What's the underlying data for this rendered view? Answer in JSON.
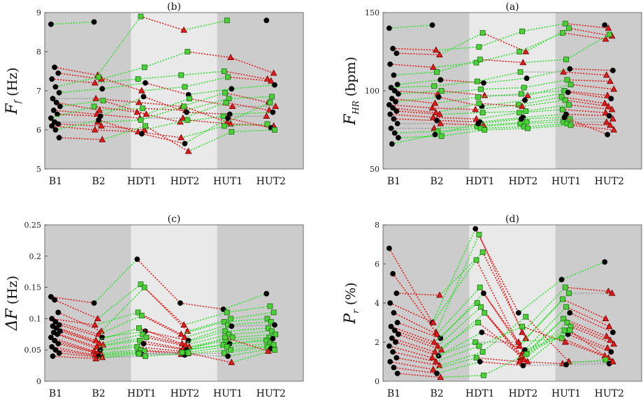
{
  "chart_data": [
    {
      "id": "b",
      "type": "scatter",
      "title": "(b)",
      "ylabel_main": "F",
      "ylabel_sub": "f",
      "ylabel_unit": "(Hz)",
      "categories": [
        "B1",
        "B2",
        "HDT1",
        "HDT2",
        "HUT1",
        "HUT2"
      ],
      "ylim": [
        5,
        9
      ],
      "yticks": [
        5,
        6,
        7,
        8,
        9
      ],
      "grid": false,
      "background_bands": [
        "dark",
        "dark",
        "light",
        "light",
        "dark",
        "dark"
      ],
      "subjects": [
        [
          8.7,
          8.76,
          null,
          null,
          null,
          8.8
        ],
        [
          7.6,
          7.4,
          8.9,
          8.55,
          8.8,
          null
        ],
        [
          7.45,
          7.3,
          7.6,
          8.0,
          7.85,
          7.45
        ],
        [
          7.3,
          7.2,
          7.3,
          7.4,
          7.5,
          7.3
        ],
        [
          7.1,
          7.35,
          7.0,
          7.1,
          7.35,
          7.25
        ],
        [
          6.95,
          7.05,
          7.2,
          6.9,
          7.05,
          7.15
        ],
        [
          6.8,
          6.8,
          6.7,
          6.6,
          6.95,
          6.7
        ],
        [
          6.7,
          6.5,
          6.55,
          6.5,
          6.8,
          6.85
        ],
        [
          6.6,
          6.75,
          6.4,
          6.8,
          6.6,
          6.6
        ],
        [
          6.5,
          6.4,
          6.3,
          6.3,
          6.7,
          6.5
        ],
        [
          6.4,
          6.35,
          6.85,
          6.45,
          6.4,
          6.45
        ],
        [
          6.3,
          6.6,
          6.45,
          6.2,
          6.35,
          6.35
        ],
        [
          6.2,
          6.2,
          6.25,
          6.6,
          6.2,
          6.7
        ],
        [
          6.15,
          6.1,
          6.0,
          6.25,
          6.15,
          6.1
        ],
        [
          6.1,
          6.0,
          5.95,
          5.8,
          6.1,
          6.15
        ],
        [
          6.0,
          6.25,
          5.9,
          5.65,
          6.3,
          6.05
        ],
        [
          5.8,
          5.75,
          6.1,
          5.45,
          5.95,
          6.0
        ]
      ]
    },
    {
      "id": "a",
      "type": "scatter",
      "title": "(a)",
      "ylabel_main": "F",
      "ylabel_sub": "HR",
      "ylabel_unit": "(bpm)",
      "categories": [
        "B1",
        "B2",
        "HDT1",
        "HDT2",
        "HUT1",
        "HUT2"
      ],
      "ylim": [
        50,
        150
      ],
      "yticks": [
        50,
        100,
        150
      ],
      "grid": false,
      "background_bands": [
        "dark",
        "dark",
        "light",
        "light",
        "dark",
        "dark"
      ],
      "subjects": [
        [
          140,
          142,
          null,
          null,
          null,
          142
        ],
        [
          127,
          126,
          128,
          138,
          143,
          140
        ],
        [
          124,
          123,
          137,
          125,
          140,
          135
        ],
        [
          117,
          115,
          118,
          125,
          137,
          133
        ],
        [
          110,
          112,
          120,
          118,
          120,
          136
        ],
        [
          104,
          107,
          105,
          108,
          114,
          113
        ],
        [
          102,
          103,
          106,
          112,
          112,
          110
        ],
        [
          100,
          98,
          101,
          102,
          107,
          106
        ],
        [
          98,
          100,
          97,
          97,
          104,
          101
        ],
        [
          95,
          92,
          96,
          98,
          100,
          97
        ],
        [
          93,
          96,
          90,
          94,
          99,
          95
        ],
        [
          91,
          89,
          88,
          91,
          96,
          92
        ],
        [
          89,
          86,
          92,
          90,
          94,
          90
        ],
        [
          87,
          85,
          86,
          87,
          91,
          88
        ],
        [
          85,
          83,
          82,
          86,
          88,
          86
        ],
        [
          82,
          81,
          80,
          83,
          85,
          84
        ],
        [
          79,
          79,
          78,
          80,
          82,
          82
        ],
        [
          76,
          76,
          77,
          79,
          80,
          80
        ],
        [
          73,
          74,
          76,
          77,
          79,
          78
        ],
        [
          70,
          71,
          75,
          76,
          78,
          75
        ],
        [
          66,
          72,
          79,
          82,
          83,
          72
        ]
      ]
    },
    {
      "id": "c",
      "type": "scatter",
      "title": "(c)",
      "ylabel_main": "ΔF",
      "ylabel_sub": "",
      "ylabel_unit": "(Hz)",
      "categories": [
        "B1",
        "B2",
        "HDT1",
        "HDT2",
        "HUT1",
        "HUT2"
      ],
      "ylim": [
        0,
        0.25
      ],
      "yticks": [
        0,
        0.05,
        0.1,
        0.15,
        0.2,
        0.25
      ],
      "grid": false,
      "background_bands": [
        "dark",
        "dark",
        "light",
        "light",
        "dark",
        "dark"
      ],
      "subjects": [
        [
          0.135,
          0.125,
          0.195,
          0.125,
          0.115,
          0.14
        ],
        [
          0.13,
          0.1,
          0.155,
          0.09,
          0.11,
          0.12
        ],
        [
          0.11,
          0.08,
          0.15,
          0.08,
          0.1,
          0.11
        ],
        [
          0.1,
          0.09,
          0.11,
          0.075,
          0.095,
          0.1
        ],
        [
          0.095,
          0.075,
          0.105,
          0.07,
          0.09,
          0.095
        ],
        [
          0.09,
          0.07,
          0.08,
          0.065,
          0.088,
          0.09
        ],
        [
          0.088,
          0.065,
          0.085,
          0.06,
          0.08,
          0.085
        ],
        [
          0.085,
          0.06,
          0.075,
          0.058,
          0.075,
          0.08
        ],
        [
          0.08,
          0.058,
          0.07,
          0.055,
          0.07,
          0.075
        ],
        [
          0.078,
          0.055,
          0.065,
          0.052,
          0.065,
          0.07
        ],
        [
          0.075,
          0.05,
          0.06,
          0.05,
          0.06,
          0.068
        ],
        [
          0.07,
          0.048,
          0.055,
          0.048,
          0.058,
          0.065
        ],
        [
          0.065,
          0.045,
          0.05,
          0.045,
          0.055,
          0.06
        ],
        [
          0.06,
          0.043,
          0.048,
          0.044,
          0.05,
          0.058
        ],
        [
          0.055,
          0.042,
          0.045,
          0.043,
          0.045,
          0.055
        ],
        [
          0.05,
          0.04,
          0.043,
          0.042,
          0.04,
          0.052
        ],
        [
          0.045,
          0.038,
          0.04,
          0.045,
          0.03,
          0.05
        ],
        [
          0.04,
          0.036,
          0.044,
          0.046,
          0.07,
          0.048
        ]
      ]
    },
    {
      "id": "d",
      "type": "scatter",
      "title": "(d)",
      "ylabel_main": "P",
      "ylabel_sub": "r",
      "ylabel_unit": "(%)",
      "categories": [
        "B1",
        "B2",
        "HDT1",
        "HDT2",
        "HUT1",
        "HUT2"
      ],
      "ylim": [
        0,
        8
      ],
      "yticks": [
        0,
        2,
        4,
        6,
        8
      ],
      "grid": false,
      "background_bands": [
        "dark",
        "dark",
        "light",
        "light",
        "dark",
        "dark"
      ],
      "subjects": [
        [
          6.8,
          3.0,
          7.8,
          3.5,
          5.2,
          6.1
        ],
        [
          5.5,
          2.5,
          7.5,
          2.5,
          4.8,
          4.6
        ],
        [
          4.5,
          4.4,
          6.6,
          2.2,
          4.5,
          4.5
        ],
        [
          4.0,
          3.0,
          6.2,
          1.8,
          4.2,
          3.2
        ],
        [
          3.5,
          2.4,
          4.8,
          1.5,
          3.8,
          2.8
        ],
        [
          3.0,
          2.2,
          4.5,
          1.4,
          3.5,
          2.5
        ],
        [
          2.8,
          2.0,
          4.0,
          1.2,
          3.2,
          2.3
        ],
        [
          2.6,
          1.8,
          3.8,
          1.1,
          3.0,
          2.1
        ],
        [
          2.4,
          1.6,
          3.5,
          1.0,
          2.8,
          1.9
        ],
        [
          2.2,
          1.5,
          3.0,
          1.3,
          2.6,
          1.7
        ],
        [
          2.0,
          1.3,
          2.5,
          1.6,
          2.4,
          1.5
        ],
        [
          1.8,
          1.2,
          2.0,
          2.0,
          2.2,
          1.3
        ],
        [
          1.5,
          1.0,
          1.8,
          2.8,
          2.0,
          1.2
        ],
        [
          1.2,
          0.8,
          1.5,
          3.3,
          1.0,
          1.0
        ],
        [
          1.0,
          0.6,
          1.2,
          1.0,
          0.9,
          1.1
        ],
        [
          0.7,
          0.4,
          1.0,
          0.8,
          0.85,
          0.9
        ],
        [
          0.4,
          0.2,
          0.3,
          1.4,
          2.6,
          1.0
        ]
      ]
    }
  ]
}
